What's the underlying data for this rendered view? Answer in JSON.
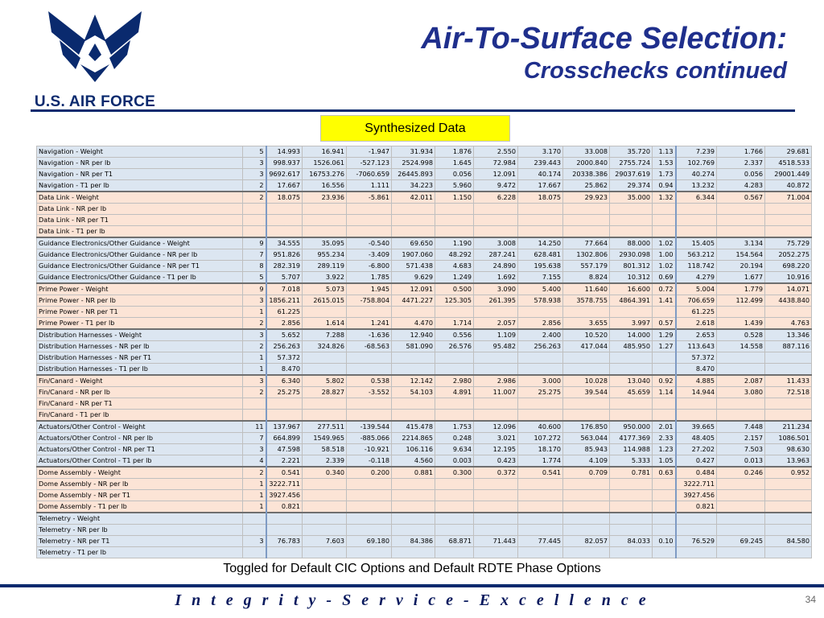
{
  "header": {
    "logo_text": "U.S. AIR FORCE",
    "title": "Air-To-Surface Selection:",
    "subtitle": "Crosschecks continued",
    "badge": "Synthesized Data"
  },
  "footer": {
    "note": "Toggled for Default CIC Options and Default RDTE Phase Options",
    "motto": "I n t e g r i t y  -  S e r v i c e  -  E x c e l l e n c e",
    "page": "34"
  },
  "colors": {
    "navy": "#0a2a6e",
    "title_blue": "#1f2f8c",
    "highlight": "#ffff00",
    "row_blue": "#dce6f1",
    "row_peach": "#fce4d6"
  },
  "table": {
    "rows": [
      {
        "g": "nav",
        "c": [
          "Navigation - Weight",
          "5",
          "14.993",
          "16.941",
          "-1.947",
          "31.934",
          "1.876",
          "2.550",
          "3.170",
          "33.008",
          "35.720",
          "1.13",
          "7.239",
          "1.766",
          "29.681"
        ]
      },
      {
        "g": "nav",
        "c": [
          "Navigation - NR per lb",
          "3",
          "998.937",
          "1526.061",
          "-527.123",
          "2524.998",
          "1.645",
          "72.984",
          "239.443",
          "2000.840",
          "2755.724",
          "1.53",
          "102.769",
          "2.337",
          "4518.533"
        ]
      },
      {
        "g": "nav",
        "c": [
          "Navigation - NR per T1",
          "3",
          "9692.617",
          "16753.276",
          "-7060.659",
          "26445.893",
          "0.056",
          "12.091",
          "40.174",
          "20338.386",
          "29037.619",
          "1.73",
          "40.274",
          "0.056",
          "29001.449"
        ]
      },
      {
        "g": "nav",
        "c": [
          "Navigation - T1 per lb",
          "2",
          "17.667",
          "16.556",
          "1.111",
          "34.223",
          "5.960",
          "9.472",
          "17.667",
          "25.862",
          "29.374",
          "0.94",
          "13.232",
          "4.283",
          "40.872"
        ]
      },
      {
        "g": "dl",
        "c": [
          "Data Link - Weight",
          "2",
          "18.075",
          "23.936",
          "-5.861",
          "42.011",
          "1.150",
          "6.228",
          "18.075",
          "29.923",
          "35.000",
          "1.32",
          "6.344",
          "0.567",
          "71.004"
        ]
      },
      {
        "g": "dl",
        "c": [
          "Data Link - NR per lb",
          "",
          "",
          "",
          "",
          "",
          "",
          "",
          "",
          "",
          "",
          "",
          "",
          "",
          ""
        ]
      },
      {
        "g": "dl",
        "c": [
          "Data Link - NR per T1",
          "",
          "",
          "",
          "",
          "",
          "",
          "",
          "",
          "",
          "",
          "",
          "",
          "",
          ""
        ]
      },
      {
        "g": "dl",
        "c": [
          "Data Link - T1 per lb",
          "",
          "",
          "",
          "",
          "",
          "",
          "",
          "",
          "",
          "",
          "",
          "",
          "",
          ""
        ]
      },
      {
        "g": "ge",
        "c": [
          "Guidance Electronics/Other Guidance - Weight",
          "9",
          "34.555",
          "35.095",
          "-0.540",
          "69.650",
          "1.190",
          "3.008",
          "14.250",
          "77.664",
          "88.000",
          "1.02",
          "15.405",
          "3.134",
          "75.729"
        ]
      },
      {
        "g": "ge",
        "c": [
          "Guidance Electronics/Other Guidance - NR per lb",
          "7",
          "951.826",
          "955.234",
          "-3.409",
          "1907.060",
          "48.292",
          "287.241",
          "628.481",
          "1302.806",
          "2930.098",
          "1.00",
          "563.212",
          "154.564",
          "2052.275"
        ]
      },
      {
        "g": "ge",
        "c": [
          "Guidance Electronics/Other Guidance - NR per T1",
          "8",
          "282.319",
          "289.119",
          "-6.800",
          "571.438",
          "4.683",
          "24.890",
          "195.638",
          "557.179",
          "801.312",
          "1.02",
          "118.742",
          "20.194",
          "698.220"
        ]
      },
      {
        "g": "ge",
        "c": [
          "Guidance Electronics/Other Guidance - T1 per lb",
          "5",
          "5.707",
          "3.922",
          "1.785",
          "9.629",
          "1.249",
          "1.692",
          "7.155",
          "8.824",
          "10.312",
          "0.69",
          "4.279",
          "1.677",
          "10.916"
        ]
      },
      {
        "g": "pp",
        "c": [
          "Prime Power - Weight",
          "9",
          "7.018",
          "5.073",
          "1.945",
          "12.091",
          "0.500",
          "3.090",
          "5.400",
          "11.640",
          "16.600",
          "0.72",
          "5.004",
          "1.779",
          "14.071"
        ]
      },
      {
        "g": "pp",
        "c": [
          "Prime Power - NR per lb",
          "3",
          "1856.211",
          "2615.015",
          "-758.804",
          "4471.227",
          "125.305",
          "261.395",
          "578.938",
          "3578.755",
          "4864.391",
          "1.41",
          "706.659",
          "112.499",
          "4438.840"
        ]
      },
      {
        "g": "pp",
        "c": [
          "Prime Power - NR per T1",
          "1",
          "61.225",
          "",
          "",
          "",
          "",
          "",
          "",
          "",
          "",
          "",
          "61.225",
          "",
          ""
        ]
      },
      {
        "g": "pp",
        "c": [
          "Prime Power - T1 per lb",
          "2",
          "2.856",
          "1.614",
          "1.241",
          "4.470",
          "1.714",
          "2.057",
          "2.856",
          "3.655",
          "3.997",
          "0.57",
          "2.618",
          "1.439",
          "4.763"
        ]
      },
      {
        "g": "dh",
        "c": [
          "Distribution Harnesses - Weight",
          "3",
          "5.652",
          "7.288",
          "-1.636",
          "12.940",
          "0.556",
          "1.109",
          "2.400",
          "10.520",
          "14.000",
          "1.29",
          "2.653",
          "0.528",
          "13.346"
        ]
      },
      {
        "g": "dh",
        "c": [
          "Distribution Harnesses - NR per lb",
          "2",
          "256.263",
          "324.826",
          "-68.563",
          "581.090",
          "26.576",
          "95.482",
          "256.263",
          "417.044",
          "485.950",
          "1.27",
          "113.643",
          "14.558",
          "887.116"
        ]
      },
      {
        "g": "dh",
        "c": [
          "Distribution Harnesses - NR per T1",
          "1",
          "57.372",
          "",
          "",
          "",
          "",
          "",
          "",
          "",
          "",
          "",
          "57.372",
          "",
          ""
        ]
      },
      {
        "g": "dh",
        "c": [
          "Distribution Harnesses - T1 per lb",
          "1",
          "8.470",
          "",
          "",
          "",
          "",
          "",
          "",
          "",
          "",
          "",
          "8.470",
          "",
          ""
        ]
      },
      {
        "g": "fc",
        "c": [
          "Fin/Canard - Weight",
          "3",
          "6.340",
          "5.802",
          "0.538",
          "12.142",
          "2.980",
          "2.986",
          "3.000",
          "10.028",
          "13.040",
          "0.92",
          "4.885",
          "2.087",
          "11.433"
        ]
      },
      {
        "g": "fc",
        "c": [
          "Fin/Canard - NR per lb",
          "2",
          "25.275",
          "28.827",
          "-3.552",
          "54.103",
          "4.891",
          "11.007",
          "25.275",
          "39.544",
          "45.659",
          "1.14",
          "14.944",
          "3.080",
          "72.518"
        ]
      },
      {
        "g": "fc",
        "c": [
          "Fin/Canard - NR per T1",
          "",
          "",
          "",
          "",
          "",
          "",
          "",
          "",
          "",
          "",
          "",
          "",
          "",
          ""
        ]
      },
      {
        "g": "fc",
        "c": [
          "Fin/Canard - T1 per lb",
          "",
          "",
          "",
          "",
          "",
          "",
          "",
          "",
          "",
          "",
          "",
          "",
          "",
          ""
        ]
      },
      {
        "g": "act",
        "c": [
          "Actuators/Other Control - Weight",
          "11",
          "137.967",
          "277.511",
          "-139.544",
          "415.478",
          "1.753",
          "12.096",
          "40.600",
          "176.850",
          "950.000",
          "2.01",
          "39.665",
          "7.448",
          "211.234"
        ]
      },
      {
        "g": "act",
        "c": [
          "Actuators/Other Control - NR per lb",
          "7",
          "664.899",
          "1549.965",
          "-885.066",
          "2214.865",
          "0.248",
          "3.021",
          "107.272",
          "563.044",
          "4177.369",
          "2.33",
          "48.405",
          "2.157",
          "1086.501"
        ]
      },
      {
        "g": "act",
        "c": [
          "Actuators/Other Control - NR per T1",
          "3",
          "47.598",
          "58.518",
          "-10.921",
          "106.116",
          "9.634",
          "12.195",
          "18.170",
          "85.943",
          "114.988",
          "1.23",
          "27.202",
          "7.503",
          "98.630"
        ]
      },
      {
        "g": "act",
        "c": [
          "Actuators/Other Control - T1 per lb",
          "4",
          "2.221",
          "2.339",
          "-0.118",
          "4.560",
          "0.003",
          "0.423",
          "1.774",
          "4.109",
          "5.333",
          "1.05",
          "0.427",
          "0.013",
          "13.963"
        ]
      },
      {
        "g": "da",
        "c": [
          "Dome Assembly - Weight",
          "2",
          "0.541",
          "0.340",
          "0.200",
          "0.881",
          "0.300",
          "0.372",
          "0.541",
          "0.709",
          "0.781",
          "0.63",
          "0.484",
          "0.246",
          "0.952"
        ]
      },
      {
        "g": "da",
        "c": [
          "Dome Assembly - NR per lb",
          "1",
          "3222.711",
          "",
          "",
          "",
          "",
          "",
          "",
          "",
          "",
          "",
          "3222.711",
          "",
          ""
        ]
      },
      {
        "g": "da",
        "c": [
          "Dome Assembly - NR per T1",
          "1",
          "3927.456",
          "",
          "",
          "",
          "",
          "",
          "",
          "",
          "",
          "",
          "3927.456",
          "",
          ""
        ]
      },
      {
        "g": "da",
        "c": [
          "Dome Assembly - T1 per lb",
          "1",
          "0.821",
          "",
          "",
          "",
          "",
          "",
          "",
          "",
          "",
          "",
          "0.821",
          "",
          ""
        ]
      },
      {
        "g": "tel",
        "c": [
          "Telemetry - Weight",
          "",
          "",
          "",
          "",
          "",
          "",
          "",
          "",
          "",
          "",
          "",
          "",
          "",
          ""
        ]
      },
      {
        "g": "tel",
        "c": [
          "Telemetry - NR per lb",
          "",
          "",
          "",
          "",
          "",
          "",
          "",
          "",
          "",
          "",
          "",
          "",
          "",
          ""
        ]
      },
      {
        "g": "tel",
        "c": [
          "Telemetry - NR per T1",
          "3",
          "76.783",
          "7.603",
          "69.180",
          "84.386",
          "68.871",
          "71.443",
          "77.445",
          "82.057",
          "84.033",
          "0.10",
          "76.529",
          "69.245",
          "84.580"
        ]
      },
      {
        "g": "tel",
        "c": [
          "Telemetry - T1 per lb",
          "",
          "",
          "",
          "",
          "",
          "",
          "",
          "",
          "",
          "",
          "",
          "",
          "",
          ""
        ]
      }
    ]
  }
}
